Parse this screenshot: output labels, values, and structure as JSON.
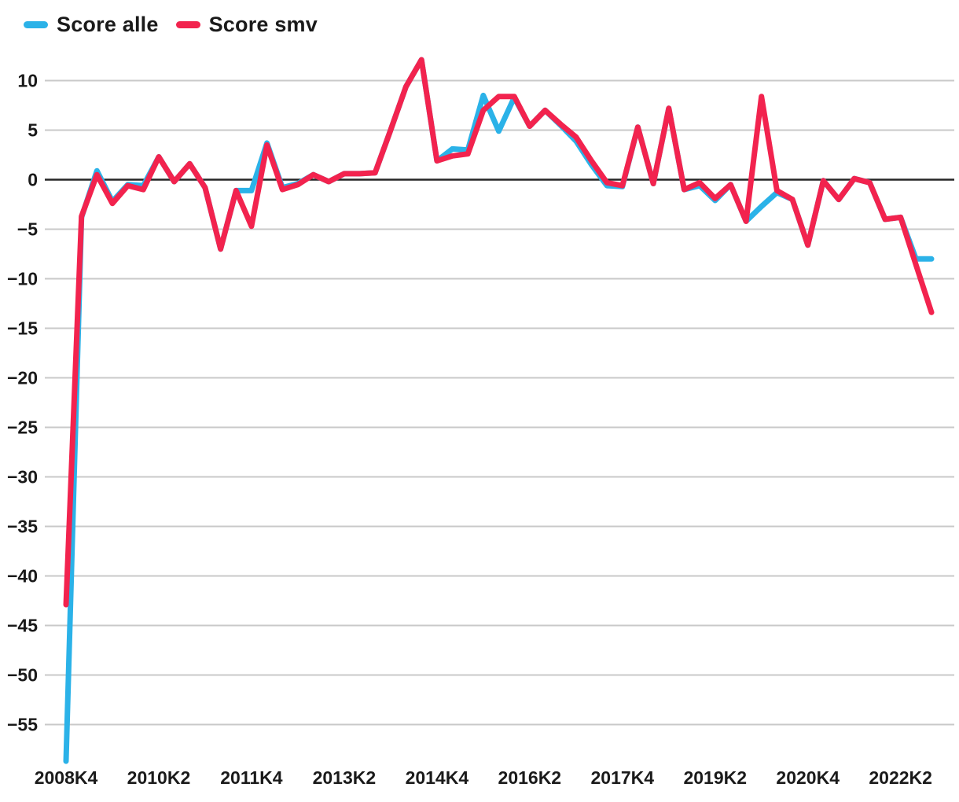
{
  "chart_data": {
    "type": "line",
    "x": [
      "2008K4",
      "2009K1",
      "2009K2",
      "2009K3",
      "2009K4",
      "2010K1",
      "2010K2",
      "2010K3",
      "2010K4",
      "2011K1",
      "2011K2",
      "2011K3",
      "2011K4",
      "2012K1",
      "2012K2",
      "2012K3",
      "2012K4",
      "2013K1",
      "2013K2",
      "2013K3",
      "2013K4",
      "2014K1",
      "2014K2",
      "2014K3",
      "2014K4",
      "2015K1",
      "2015K2",
      "2015K3",
      "2015K4",
      "2016K1",
      "2016K2",
      "2016K3",
      "2016K4",
      "2017K1",
      "2017K2",
      "2017K3",
      "2017K4",
      "2018K1",
      "2018K2",
      "2018K3",
      "2018K4",
      "2019K1",
      "2019K2",
      "2019K3",
      "2019K4",
      "2020K1",
      "2020K2",
      "2020K3",
      "2020K4",
      "2021K1",
      "2021K2",
      "2021K3",
      "2021K4",
      "2022K1",
      "2022K2",
      "2022K3",
      "2022K4"
    ],
    "x_tick_labels": [
      "2008K4",
      "2010K2",
      "2011K4",
      "2013K2",
      "2014K4",
      "2016K2",
      "2017K4",
      "2019K2",
      "2020K4",
      "2022K2"
    ],
    "x_tick_every": 6,
    "series": [
      {
        "name": "Score alle",
        "color": "#2bb2e8",
        "values": [
          -58.7,
          -3.8,
          0.9,
          -2.2,
          -0.5,
          -0.6,
          2.3,
          -0.2,
          1.6,
          -0.8,
          -7.0,
          -1.1,
          -1.1,
          3.7,
          -0.8,
          -0.4,
          0.5,
          -0.2,
          0.6,
          0.6,
          0.7,
          5.0,
          9.4,
          12.1,
          1.9,
          3.1,
          3.0,
          8.5,
          4.9,
          8.3,
          5.4,
          7.0,
          5.5,
          3.9,
          1.5,
          -0.6,
          -0.7,
          5.3,
          -0.4,
          7.2,
          -1.0,
          -0.6,
          -2.1,
          -0.5,
          -4.2,
          -2.7,
          -1.3,
          -2.0,
          -6.6,
          -0.1,
          -2.0,
          0.1,
          -0.3,
          -4.0,
          -3.8,
          -8.0,
          -8.0
        ]
      },
      {
        "name": "Score smv",
        "color": "#f2234e",
        "values": [
          -42.9,
          -3.7,
          0.5,
          -2.4,
          -0.6,
          -1.0,
          2.3,
          -0.2,
          1.6,
          -0.8,
          -7.0,
          -1.1,
          -4.7,
          3.5,
          -1.0,
          -0.5,
          0.5,
          -0.2,
          0.6,
          0.6,
          0.7,
          5.0,
          9.4,
          12.1,
          1.9,
          2.4,
          2.6,
          7.0,
          8.4,
          8.4,
          5.4,
          7.0,
          5.6,
          4.3,
          1.9,
          -0.3,
          -0.6,
          5.3,
          -0.4,
          7.2,
          -1.0,
          -0.3,
          -1.9,
          -0.5,
          -4.2,
          8.4,
          -1.1,
          -2.0,
          -6.6,
          -0.1,
          -2.0,
          0.1,
          -0.3,
          -4.0,
          -3.8,
          -8.6,
          -13.4
        ]
      }
    ],
    "y_ticks": [
      10,
      5,
      0,
      -5,
      -10,
      -15,
      -20,
      -25,
      -30,
      -35,
      -40,
      -45,
      -50,
      -55
    ],
    "ylim": [
      -60,
      12.5
    ],
    "grid": true,
    "legend_position": "top-left",
    "grid_color": "#c9c9c9",
    "zero_line_color": "#262626",
    "text_color": "#1a1a1a",
    "background_color": "#ffffff"
  }
}
